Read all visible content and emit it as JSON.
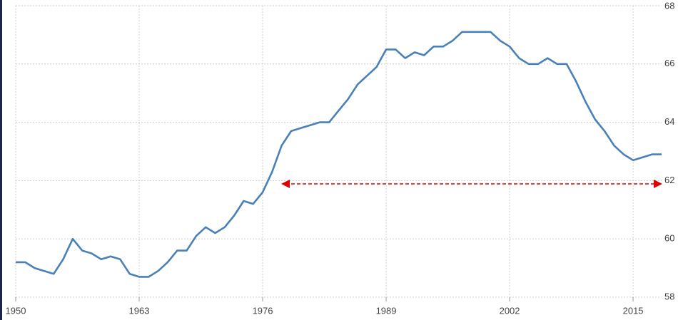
{
  "chart_data": {
    "type": "line",
    "x": [
      1950,
      1951,
      1952,
      1953,
      1954,
      1955,
      1956,
      1957,
      1958,
      1959,
      1960,
      1961,
      1962,
      1963,
      1964,
      1965,
      1966,
      1967,
      1968,
      1969,
      1970,
      1971,
      1972,
      1973,
      1974,
      1975,
      1976,
      1977,
      1978,
      1979,
      1980,
      1981,
      1982,
      1983,
      1984,
      1985,
      1986,
      1987,
      1988,
      1989,
      1990,
      1991,
      1992,
      1993,
      1994,
      1995,
      1996,
      1997,
      1998,
      1999,
      2000,
      2001,
      2002,
      2003,
      2004,
      2005,
      2006,
      2007,
      2008,
      2009,
      2010,
      2011,
      2012,
      2013,
      2014,
      2015,
      2016,
      2017,
      2018
    ],
    "series": [
      {
        "color": "#4a80b8",
        "values": [
          59.2,
          59.2,
          59.0,
          58.9,
          58.8,
          59.3,
          60.0,
          59.6,
          59.5,
          59.3,
          59.4,
          59.3,
          58.8,
          58.7,
          58.7,
          58.9,
          59.2,
          59.6,
          59.6,
          60.1,
          60.4,
          60.2,
          60.4,
          60.8,
          61.3,
          61.2,
          61.6,
          62.3,
          63.2,
          63.7,
          63.8,
          63.9,
          64.0,
          64.0,
          64.4,
          64.8,
          65.3,
          65.6,
          65.9,
          66.5,
          66.5,
          66.2,
          66.4,
          66.3,
          66.6,
          66.6,
          66.8,
          67.1,
          67.1,
          67.1,
          67.1,
          66.8,
          66.6,
          66.2,
          66.0,
          66.0,
          66.2,
          66.0,
          66.0,
          65.4,
          64.7,
          64.1,
          63.7,
          63.2,
          62.9,
          62.7,
          62.8,
          62.9,
          62.9
        ]
      }
    ],
    "xlim": [
      1950,
      2018
    ],
    "xticks": [
      1950,
      1963,
      1976,
      1989,
      2002,
      2015
    ],
    "ylim": [
      58,
      68
    ],
    "yticks": [
      58,
      60,
      62,
      64,
      66,
      68
    ],
    "grid": true
  }
}
